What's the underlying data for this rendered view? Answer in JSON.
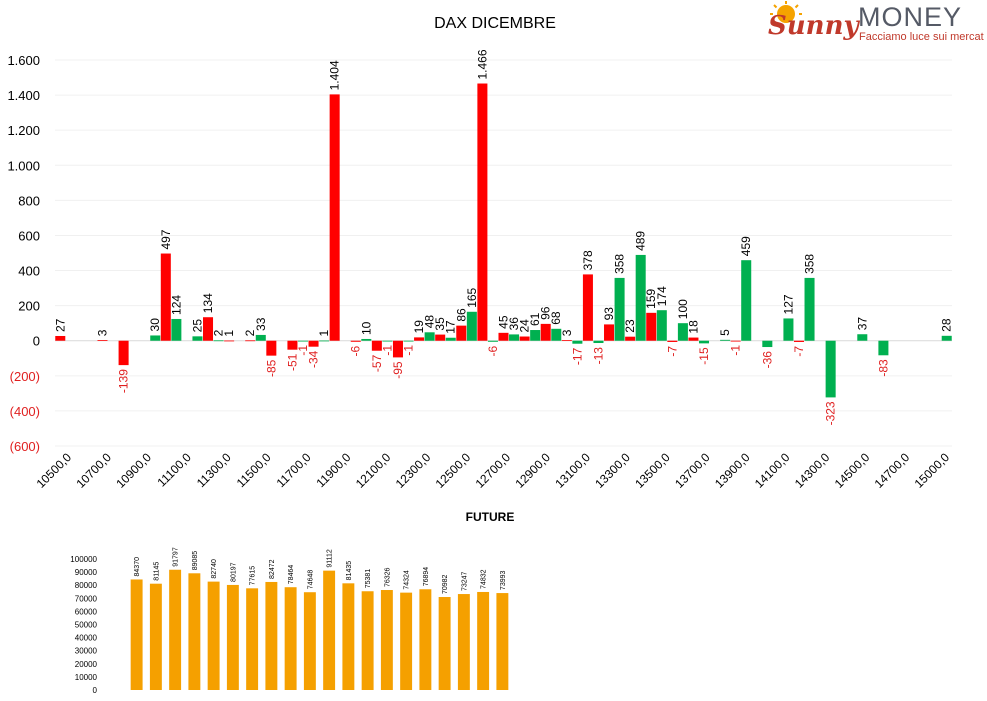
{
  "logo": {
    "brand_script": "Sunny",
    "brand_caps": "MONEY",
    "tagline": "Facciamo luce sui mercati",
    "colors": {
      "sun": "#f5a300",
      "script": "#c0392b",
      "caps": "#555a66",
      "tagline": "#c0392b"
    }
  },
  "colors": {
    "positive": "#00b050",
    "negative": "#ff0000",
    "future": "#f5a000",
    "negative_label": "#e02020"
  },
  "chart_data": [
    {
      "type": "bar",
      "title": "DAX DICEMBRE",
      "ylim": [
        -600,
        1600
      ],
      "yticks": [
        -600,
        -400,
        -200,
        0,
        200,
        400,
        600,
        800,
        1000,
        1200,
        1400,
        1600
      ],
      "ytick_labels": [
        "(600)",
        "(400)",
        "(200)",
        "0",
        "200",
        "400",
        "600",
        "800",
        "1.000",
        "1.200",
        "1.400",
        "1.600"
      ],
      "xtick_labels": [
        "10500,0",
        "10700,0",
        "10900,0",
        "11100,0",
        "11300,0",
        "11500,0",
        "11700,0",
        "11900,0",
        "12100,0",
        "12300,0",
        "12500,0",
        "12700,0",
        "12900,0",
        "13100,0",
        "13300,0",
        "13500,0",
        "13700,0",
        "13900,0",
        "14100,0",
        "14300,0",
        "14500,0",
        "14700,0",
        "15000,0"
      ],
      "grid": true,
      "legend": "none",
      "bars": [
        {
          "slot": 0,
          "series": "red",
          "value": 27,
          "label": "27"
        },
        {
          "slot": 4,
          "series": "red",
          "value": 3,
          "label": "3"
        },
        {
          "slot": 6,
          "series": "red",
          "value": -139,
          "label": "-139"
        },
        {
          "slot": 9,
          "series": "green",
          "value": 30,
          "label": "30"
        },
        {
          "slot": 10,
          "series": "red",
          "value": 497,
          "label": "497"
        },
        {
          "slot": 11,
          "series": "green",
          "value": 124,
          "label": "124"
        },
        {
          "slot": 13,
          "series": "green",
          "value": 25,
          "label": "25"
        },
        {
          "slot": 14,
          "series": "red",
          "value": 134,
          "label": "134"
        },
        {
          "slot": 15,
          "series": "green",
          "value": 2,
          "label": "2"
        },
        {
          "slot": 16,
          "series": "red",
          "value": 1,
          "label": "1"
        },
        {
          "slot": 18,
          "series": "red",
          "value": 2,
          "label": "2"
        },
        {
          "slot": 19,
          "series": "green",
          "value": 33,
          "label": "33"
        },
        {
          "slot": 20,
          "series": "red",
          "value": -85,
          "label": "-85"
        },
        {
          "slot": 22,
          "series": "red",
          "value": -51,
          "label": "-51"
        },
        {
          "slot": 23,
          "series": "green",
          "value": -1,
          "label": "-1"
        },
        {
          "slot": 24,
          "series": "red",
          "value": -34,
          "label": "-34"
        },
        {
          "slot": 25,
          "series": "green",
          "value": 1,
          "label": "1"
        },
        {
          "slot": 26,
          "series": "red",
          "value": 1404,
          "label": "1.404"
        },
        {
          "slot": 28,
          "series": "red",
          "value": -6,
          "label": "-6"
        },
        {
          "slot": 29,
          "series": "green",
          "value": 10,
          "label": "10"
        },
        {
          "slot": 30,
          "series": "red",
          "value": -57,
          "label": "-57"
        },
        {
          "slot": 31,
          "series": "green",
          "value": -1,
          "label": "-1"
        },
        {
          "slot": 32,
          "series": "red",
          "value": -95,
          "label": "-95"
        },
        {
          "slot": 33,
          "series": "green",
          "value": -1,
          "label": "-1"
        },
        {
          "slot": 34,
          "series": "red",
          "value": 19,
          "label": "19"
        },
        {
          "slot": 35,
          "series": "green",
          "value": 48,
          "label": "48"
        },
        {
          "slot": 36,
          "series": "red",
          "value": 35,
          "label": "35"
        },
        {
          "slot": 37,
          "series": "green",
          "value": 17,
          "label": "17"
        },
        {
          "slot": 38,
          "series": "red",
          "value": 86,
          "label": "86"
        },
        {
          "slot": 39,
          "series": "green",
          "value": 165,
          "label": "165"
        },
        {
          "slot": 40,
          "series": "red",
          "value": 1466,
          "label": "1.466"
        },
        {
          "slot": 41,
          "series": "green",
          "value": -6,
          "label": "-6"
        },
        {
          "slot": 42,
          "series": "red",
          "value": 45,
          "label": "45"
        },
        {
          "slot": 43,
          "series": "green",
          "value": 36,
          "label": "36"
        },
        {
          "slot": 44,
          "series": "red",
          "value": 24,
          "label": "24"
        },
        {
          "slot": 45,
          "series": "green",
          "value": 61,
          "label": "61"
        },
        {
          "slot": 46,
          "series": "red",
          "value": 96,
          "label": "96"
        },
        {
          "slot": 47,
          "series": "green",
          "value": 68,
          "label": "68"
        },
        {
          "slot": 48,
          "series": "red",
          "value": 3,
          "label": "3"
        },
        {
          "slot": 49,
          "series": "green",
          "value": -17,
          "label": "-17"
        },
        {
          "slot": 50,
          "series": "red",
          "value": 378,
          "label": "378"
        },
        {
          "slot": 51,
          "series": "green",
          "value": -13,
          "label": "-13"
        },
        {
          "slot": 52,
          "series": "red",
          "value": 93,
          "label": "93"
        },
        {
          "slot": 53,
          "series": "green",
          "value": 358,
          "label": "358"
        },
        {
          "slot": 54,
          "series": "red",
          "value": 23,
          "label": "23"
        },
        {
          "slot": 55,
          "series": "green",
          "value": 489,
          "label": "489"
        },
        {
          "slot": 56,
          "series": "red",
          "value": 159,
          "label": "159"
        },
        {
          "slot": 57,
          "series": "green",
          "value": 174,
          "label": "174"
        },
        {
          "slot": 58,
          "series": "red",
          "value": -7,
          "label": "-7"
        },
        {
          "slot": 59,
          "series": "green",
          "value": 100,
          "label": "100"
        },
        {
          "slot": 60,
          "series": "red",
          "value": 18,
          "label": "18"
        },
        {
          "slot": 61,
          "series": "green",
          "value": -15,
          "label": "-15"
        },
        {
          "slot": 63,
          "series": "green",
          "value": 5,
          "label": "5"
        },
        {
          "slot": 64,
          "series": "red",
          "value": -1,
          "label": "-1"
        },
        {
          "slot": 65,
          "series": "green",
          "value": 459,
          "label": "459"
        },
        {
          "slot": 67,
          "series": "green",
          "value": -36,
          "label": "-36"
        },
        {
          "slot": 69,
          "series": "green",
          "value": 127,
          "label": "127"
        },
        {
          "slot": 70,
          "series": "red",
          "value": -7,
          "label": "-7"
        },
        {
          "slot": 71,
          "series": "green",
          "value": 358,
          "label": "358"
        },
        {
          "slot": 73,
          "series": "green",
          "value": -323,
          "label": "-323"
        },
        {
          "slot": 76,
          "series": "green",
          "value": 37,
          "label": "37"
        },
        {
          "slot": 78,
          "series": "green",
          "value": -83,
          "label": "-83"
        },
        {
          "slot": 84,
          "series": "green",
          "value": 28,
          "label": "28"
        }
      ],
      "slot_count": 85
    },
    {
      "type": "bar",
      "title": "FUTURE",
      "ylim": [
        0,
        100000
      ],
      "yticks": [
        0,
        10000,
        20000,
        30000,
        40000,
        50000,
        60000,
        70000,
        80000,
        90000,
        100000
      ],
      "ytick_labels": [
        "0",
        "10000",
        "20000",
        "30000",
        "40000",
        "50000",
        "60000",
        "70000",
        "80000",
        "90000",
        "100000"
      ],
      "values": [
        84370,
        81145,
        91797,
        89085,
        82740,
        80197,
        77615,
        82472,
        78464,
        74648,
        91112,
        81435,
        75381,
        76326,
        74324,
        76894,
        70982,
        73247,
        74832,
        73993
      ],
      "labels": [
        "84370",
        "81145",
        "91797",
        "89085",
        "82740",
        "80197",
        "77615",
        "82472",
        "78464",
        "74648",
        "91112",
        "81435",
        "75381",
        "76326",
        "74324",
        "76894",
        "70982",
        "73247",
        "74832",
        "73993"
      ],
      "legend": "none",
      "grid": false
    }
  ]
}
